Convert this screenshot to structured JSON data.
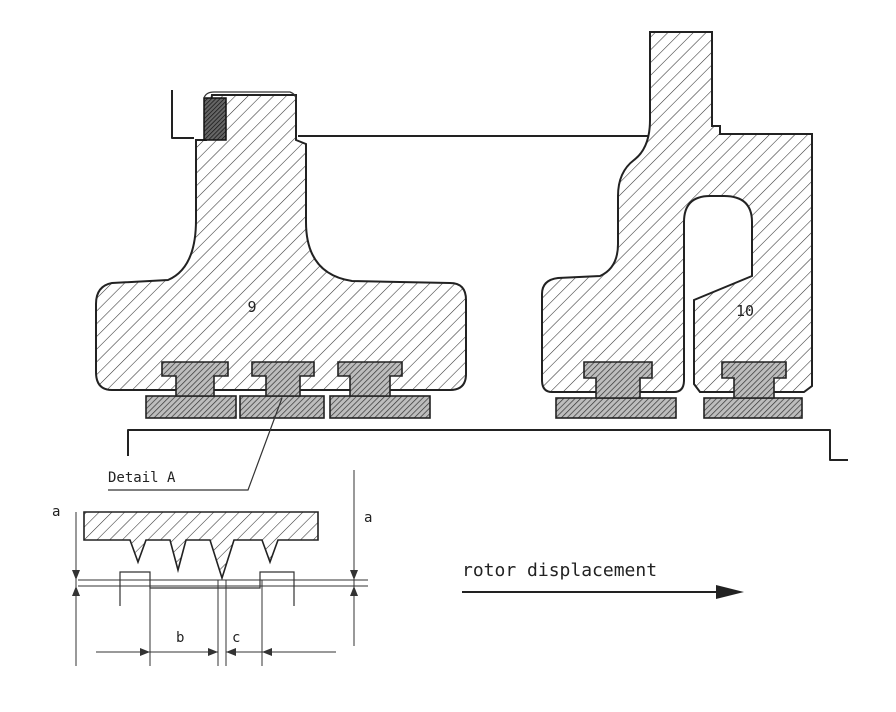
{
  "diagram": {
    "part_label_left": "9",
    "part_label_right": "10",
    "detail_label": "Detail A",
    "dim_a_left": "a",
    "dim_a_right": "a",
    "dim_b": "b",
    "dim_c": "c",
    "arrow_caption": "rotor displacement"
  }
}
